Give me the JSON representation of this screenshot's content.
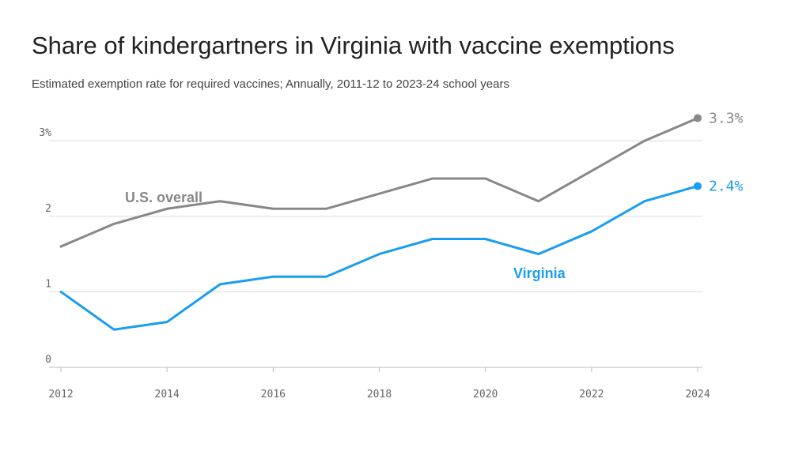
{
  "title": "Share of kindergartners in Virginia with vaccine exemptions",
  "subtitle": "Estimated exemption rate for required vaccines; Annually, 2011-12 to 2023-24 school years",
  "chart_data": {
    "type": "line",
    "x": [
      2012,
      2013,
      2014,
      2015,
      2016,
      2017,
      2018,
      2019,
      2020,
      2021,
      2022,
      2023,
      2024
    ],
    "xticks": [
      2012,
      2014,
      2016,
      2018,
      2020,
      2022,
      2024
    ],
    "yticks": [
      0,
      1,
      2,
      3
    ],
    "ytick_labels": [
      "0",
      "1",
      "2",
      "3%"
    ],
    "xlim": [
      2012,
      2024
    ],
    "ylim": [
      0,
      3.4
    ],
    "grid": true,
    "series": [
      {
        "name": "U.S. overall",
        "color": "#888888",
        "values": [
          1.6,
          1.9,
          2.1,
          2.2,
          2.1,
          2.1,
          2.3,
          2.5,
          2.5,
          2.2,
          2.6,
          3.0,
          3.3
        ],
        "end_label": "3.3%"
      },
      {
        "name": "Virginia",
        "color": "#1a9df0",
        "values": [
          1.0,
          0.5,
          0.6,
          1.1,
          1.2,
          1.2,
          1.5,
          1.7,
          1.7,
          1.5,
          1.8,
          2.2,
          2.4
        ],
        "end_label": "2.4%"
      }
    ]
  }
}
